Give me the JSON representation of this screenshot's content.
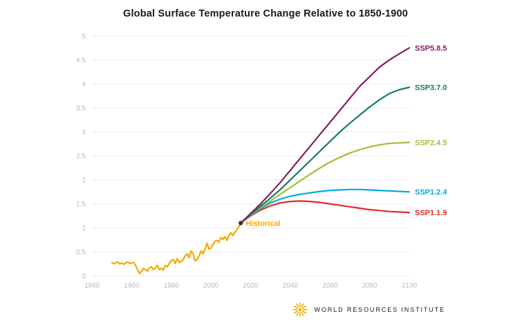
{
  "title": "Global Surface Temperature Change Relative to 1850-1900",
  "footer": {
    "brand": "WORLD RESOURCES INSTITUTE",
    "logo_icon": "sunburst-icon",
    "logo_color": "#F0AB00"
  },
  "chart_data": {
    "type": "line",
    "title": "Global Surface Temperature Change Relative to 1850-1900",
    "xlabel": "",
    "ylabel": "",
    "grid": "horizontal",
    "legend_position": "right-end-labels",
    "colors": {
      "grid": "#e8e8e8",
      "tick": "#b9b9b9",
      "title": "#191919"
    },
    "x_axis": {
      "range": [
        1940,
        2100
      ],
      "tick_values": [
        1940,
        1960,
        1980,
        2000,
        2020,
        2040,
        2060,
        2080,
        2100
      ],
      "tick_labels": [
        "1940",
        "1960",
        "1980",
        "2000",
        "2020",
        "2040",
        "2060",
        "2080",
        "2100"
      ]
    },
    "y_axis": {
      "range": [
        0,
        5
      ],
      "tick_values": [
        0,
        0.5,
        1,
        1.5,
        2,
        2.5,
        3,
        3.5,
        4,
        4.5,
        5
      ],
      "tick_labels": [
        "0",
        "0.5",
        "1",
        "1.5",
        "2",
        "2.5",
        "3",
        "3.5",
        "4",
        "4.5",
        "5"
      ]
    },
    "junction_marker": {
      "year": 2015,
      "value": 1.1,
      "color": "#31313f"
    },
    "series": [
      {
        "id": "historical",
        "name": "Historical",
        "color": "#F6A800",
        "end_label": false,
        "inline_label": {
          "text": "Historical",
          "year": 2017.5,
          "value": 1.04
        },
        "points": [
          [
            1950,
            0.28
          ],
          [
            1951,
            0.25
          ],
          [
            1952,
            0.27
          ],
          [
            1953,
            0.29
          ],
          [
            1954,
            0.25
          ],
          [
            1955,
            0.27
          ],
          [
            1956,
            0.24
          ],
          [
            1957,
            0.27
          ],
          [
            1958,
            0.29
          ],
          [
            1959,
            0.26
          ],
          [
            1960,
            0.27
          ],
          [
            1961,
            0.28
          ],
          [
            1962,
            0.22
          ],
          [
            1963,
            0.12
          ],
          [
            1964,
            0.05
          ],
          [
            1965,
            0.1
          ],
          [
            1966,
            0.16
          ],
          [
            1967,
            0.13
          ],
          [
            1968,
            0.1
          ],
          [
            1969,
            0.17
          ],
          [
            1970,
            0.19
          ],
          [
            1971,
            0.13
          ],
          [
            1972,
            0.17
          ],
          [
            1973,
            0.22
          ],
          [
            1974,
            0.13
          ],
          [
            1975,
            0.16
          ],
          [
            1976,
            0.12
          ],
          [
            1977,
            0.22
          ],
          [
            1978,
            0.19
          ],
          [
            1979,
            0.26
          ],
          [
            1980,
            0.32
          ],
          [
            1981,
            0.34
          ],
          [
            1982,
            0.26
          ],
          [
            1983,
            0.36
          ],
          [
            1984,
            0.28
          ],
          [
            1985,
            0.3
          ],
          [
            1986,
            0.34
          ],
          [
            1987,
            0.42
          ],
          [
            1988,
            0.46
          ],
          [
            1989,
            0.38
          ],
          [
            1990,
            0.52
          ],
          [
            1991,
            0.46
          ],
          [
            1992,
            0.31
          ],
          [
            1993,
            0.34
          ],
          [
            1994,
            0.42
          ],
          [
            1995,
            0.52
          ],
          [
            1996,
            0.46
          ],
          [
            1997,
            0.56
          ],
          [
            1998,
            0.68
          ],
          [
            1999,
            0.56
          ],
          [
            2000,
            0.58
          ],
          [
            2001,
            0.66
          ],
          [
            2002,
            0.72
          ],
          [
            2003,
            0.74
          ],
          [
            2004,
            0.7
          ],
          [
            2005,
            0.8
          ],
          [
            2006,
            0.76
          ],
          [
            2007,
            0.82
          ],
          [
            2008,
            0.74
          ],
          [
            2009,
            0.84
          ],
          [
            2010,
            0.9
          ],
          [
            2011,
            0.84
          ],
          [
            2012,
            0.9
          ],
          [
            2013,
            0.96
          ],
          [
            2014,
            1.02
          ],
          [
            2015,
            1.1
          ]
        ]
      },
      {
        "id": "ssp119",
        "name": "SSP1.1.9",
        "color": "#E02B27",
        "end_label": true,
        "points": [
          [
            2015,
            1.1
          ],
          [
            2020,
            1.25
          ],
          [
            2025,
            1.37
          ],
          [
            2030,
            1.46
          ],
          [
            2035,
            1.52
          ],
          [
            2040,
            1.55
          ],
          [
            2045,
            1.56
          ],
          [
            2050,
            1.55
          ],
          [
            2055,
            1.53
          ],
          [
            2060,
            1.5
          ],
          [
            2065,
            1.47
          ],
          [
            2070,
            1.44
          ],
          [
            2075,
            1.41
          ],
          [
            2080,
            1.38
          ],
          [
            2085,
            1.36
          ],
          [
            2090,
            1.34
          ],
          [
            2095,
            1.33
          ],
          [
            2100,
            1.32
          ]
        ]
      },
      {
        "id": "ssp124",
        "name": "SSP1.2.4",
        "color": "#00A9E0",
        "end_label": true,
        "points": [
          [
            2015,
            1.1
          ],
          [
            2020,
            1.26
          ],
          [
            2025,
            1.4
          ],
          [
            2030,
            1.52
          ],
          [
            2035,
            1.6
          ],
          [
            2040,
            1.66
          ],
          [
            2045,
            1.7
          ],
          [
            2050,
            1.73
          ],
          [
            2055,
            1.76
          ],
          [
            2060,
            1.78
          ],
          [
            2065,
            1.79
          ],
          [
            2070,
            1.8
          ],
          [
            2075,
            1.8
          ],
          [
            2080,
            1.79
          ],
          [
            2085,
            1.78
          ],
          [
            2090,
            1.77
          ],
          [
            2095,
            1.76
          ],
          [
            2100,
            1.75
          ]
        ]
      },
      {
        "id": "ssp245",
        "name": "SSP2.4.5",
        "color": "#A3BE3C",
        "end_label": true,
        "points": [
          [
            2015,
            1.1
          ],
          [
            2020,
            1.27
          ],
          [
            2025,
            1.42
          ],
          [
            2030,
            1.56
          ],
          [
            2035,
            1.7
          ],
          [
            2040,
            1.84
          ],
          [
            2045,
            1.98
          ],
          [
            2050,
            2.12
          ],
          [
            2055,
            2.25
          ],
          [
            2060,
            2.37
          ],
          [
            2065,
            2.47
          ],
          [
            2070,
            2.56
          ],
          [
            2075,
            2.63
          ],
          [
            2080,
            2.69
          ],
          [
            2085,
            2.73
          ],
          [
            2090,
            2.76
          ],
          [
            2095,
            2.77
          ],
          [
            2100,
            2.78
          ]
        ]
      },
      {
        "id": "ssp370",
        "name": "SSP3.7.0",
        "color": "#0E7D5E",
        "end_label": true,
        "points": [
          [
            2015,
            1.1
          ],
          [
            2020,
            1.28
          ],
          [
            2025,
            1.45
          ],
          [
            2030,
            1.62
          ],
          [
            2035,
            1.8
          ],
          [
            2040,
            2.0
          ],
          [
            2045,
            2.2
          ],
          [
            2050,
            2.4
          ],
          [
            2055,
            2.6
          ],
          [
            2060,
            2.8
          ],
          [
            2065,
            3.0
          ],
          [
            2070,
            3.18
          ],
          [
            2075,
            3.35
          ],
          [
            2080,
            3.52
          ],
          [
            2085,
            3.67
          ],
          [
            2090,
            3.8
          ],
          [
            2095,
            3.88
          ],
          [
            2100,
            3.93
          ]
        ]
      },
      {
        "id": "ssp585",
        "name": "SSP5.8.5",
        "color": "#8A1A62",
        "end_label": true,
        "points": [
          [
            2015,
            1.1
          ],
          [
            2020,
            1.3
          ],
          [
            2025,
            1.5
          ],
          [
            2030,
            1.72
          ],
          [
            2035,
            1.95
          ],
          [
            2040,
            2.2
          ],
          [
            2045,
            2.45
          ],
          [
            2050,
            2.7
          ],
          [
            2055,
            2.95
          ],
          [
            2060,
            3.2
          ],
          [
            2065,
            3.45
          ],
          [
            2070,
            3.7
          ],
          [
            2075,
            3.95
          ],
          [
            2080,
            4.15
          ],
          [
            2085,
            4.35
          ],
          [
            2090,
            4.5
          ],
          [
            2095,
            4.63
          ],
          [
            2100,
            4.75
          ]
        ]
      }
    ]
  }
}
